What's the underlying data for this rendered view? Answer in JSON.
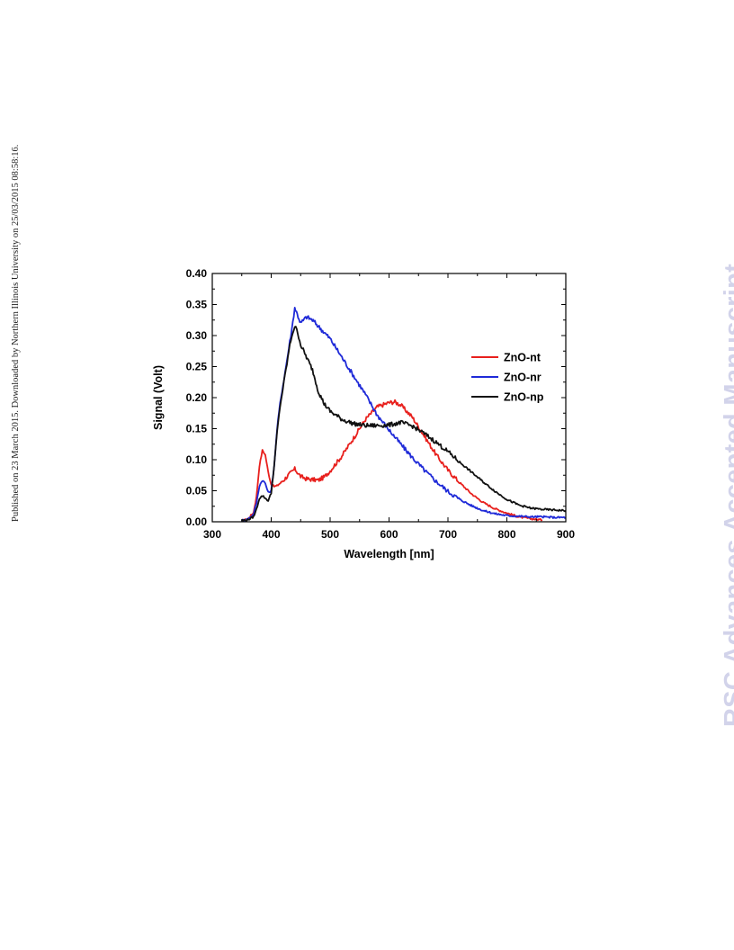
{
  "side_note": "Published on 23 March 2015. Downloaded by Northern Illinois University on 25/03/2015 08:58:16.",
  "watermark": "RSC Advances Accepted Manuscript",
  "chart_data": {
    "type": "line",
    "title": "",
    "xlabel": "Wavelength [nm]",
    "ylabel": "Signal (Volt)",
    "xlim": [
      300,
      900
    ],
    "ylim": [
      0.0,
      0.4
    ],
    "xticks": [
      300,
      400,
      500,
      600,
      700,
      800,
      900
    ],
    "yticks": [
      0.0,
      0.05,
      0.1,
      0.15,
      0.2,
      0.25,
      0.3,
      0.35,
      0.4
    ],
    "xtick_labels": [
      "300",
      "400",
      "500",
      "600",
      "700",
      "800",
      "900"
    ],
    "ytick_labels": [
      "0.00",
      "0.05",
      "0.10",
      "0.15",
      "0.20",
      "0.25",
      "0.30",
      "0.35",
      "0.40"
    ],
    "grid": false,
    "legend": "right",
    "series": [
      {
        "name": "ZnO-nt",
        "color": "#e8201d",
        "x": [
          350,
          360,
          370,
          375,
          380,
          385,
          390,
          395,
          400,
          405,
          410,
          420,
          430,
          440,
          450,
          460,
          470,
          480,
          490,
          500,
          520,
          540,
          560,
          580,
          600,
          610,
          620,
          640,
          660,
          680,
          700,
          720,
          740,
          760,
          780,
          800,
          820,
          840,
          860
        ],
        "y": [
          0.002,
          0.004,
          0.015,
          0.04,
          0.09,
          0.115,
          0.108,
          0.08,
          0.06,
          0.057,
          0.058,
          0.066,
          0.076,
          0.085,
          0.073,
          0.069,
          0.068,
          0.067,
          0.072,
          0.082,
          0.106,
          0.135,
          0.165,
          0.185,
          0.192,
          0.193,
          0.188,
          0.168,
          0.138,
          0.108,
          0.083,
          0.063,
          0.045,
          0.031,
          0.021,
          0.014,
          0.008,
          0.005,
          0.003
        ]
      },
      {
        "name": "ZnO-nr",
        "color": "#1f2ad8",
        "x": [
          350,
          360,
          370,
          375,
          380,
          385,
          390,
          395,
          400,
          405,
          410,
          415,
          420,
          425,
          430,
          435,
          440,
          450,
          460,
          470,
          480,
          490,
          500,
          520,
          540,
          560,
          580,
          600,
          620,
          640,
          660,
          680,
          700,
          720,
          740,
          760,
          780,
          800,
          820,
          840,
          860,
          880,
          900
        ],
        "y": [
          0.002,
          0.004,
          0.012,
          0.03,
          0.058,
          0.067,
          0.062,
          0.047,
          0.05,
          0.09,
          0.15,
          0.19,
          0.22,
          0.25,
          0.28,
          0.31,
          0.345,
          0.32,
          0.33,
          0.325,
          0.315,
          0.305,
          0.295,
          0.265,
          0.235,
          0.205,
          0.172,
          0.148,
          0.125,
          0.103,
          0.083,
          0.065,
          0.049,
          0.036,
          0.026,
          0.018,
          0.013,
          0.01,
          0.009,
          0.008,
          0.008,
          0.007,
          0.007
        ]
      },
      {
        "name": "ZnO-np",
        "color": "#111111",
        "x": [
          350,
          360,
          370,
          375,
          380,
          385,
          390,
          395,
          400,
          405,
          410,
          415,
          420,
          425,
          430,
          435,
          440,
          445,
          450,
          460,
          470,
          480,
          490,
          500,
          520,
          540,
          560,
          580,
          600,
          620,
          640,
          660,
          680,
          700,
          720,
          740,
          760,
          780,
          800,
          820,
          840,
          860,
          880,
          900
        ],
        "y": [
          0.002,
          0.003,
          0.008,
          0.02,
          0.038,
          0.042,
          0.038,
          0.034,
          0.046,
          0.09,
          0.145,
          0.185,
          0.215,
          0.245,
          0.275,
          0.3,
          0.315,
          0.305,
          0.285,
          0.265,
          0.245,
          0.21,
          0.19,
          0.178,
          0.165,
          0.158,
          0.155,
          0.155,
          0.156,
          0.16,
          0.154,
          0.142,
          0.128,
          0.113,
          0.096,
          0.08,
          0.064,
          0.049,
          0.036,
          0.027,
          0.022,
          0.02,
          0.019,
          0.018
        ]
      }
    ]
  }
}
